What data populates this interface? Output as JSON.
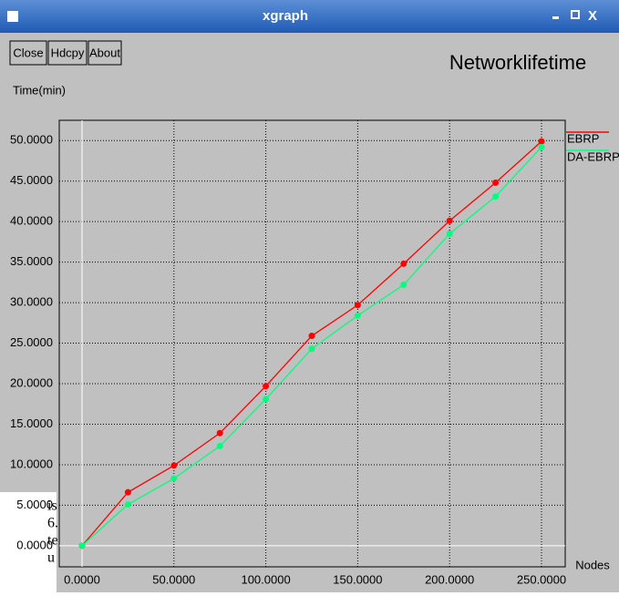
{
  "window": {
    "title": "xgraph",
    "buttons": [
      "Close",
      "Hdcpy",
      "About"
    ]
  },
  "background_fragments": [
    "is",
    "6.",
    "te",
    "u"
  ],
  "chart_data": {
    "type": "line",
    "title": "Networklifetime",
    "y_label": "Time(min)",
    "x_label": "Nodes",
    "x": [
      0,
      25,
      50,
      75,
      100,
      125,
      150,
      175,
      200,
      225,
      250
    ],
    "series": [
      {
        "name": "EBRP",
        "color": "#ff0000",
        "values": [
          0,
          6.6,
          9.9,
          13.9,
          19.7,
          25.9,
          29.7,
          34.8,
          40.1,
          44.8,
          49.9
        ]
      },
      {
        "name": "DA-EBRP",
        "color": "#00ff7f",
        "values": [
          0,
          5.1,
          8.3,
          12.3,
          18.1,
          24.3,
          28.4,
          32.2,
          38.5,
          43.1,
          49.2
        ]
      }
    ],
    "xlim": [
      -12.4,
      262.9
    ],
    "ylim": [
      -2.6,
      52.5
    ],
    "xticks": [
      {
        "value": 0,
        "label": "0.0000"
      },
      {
        "value": 50,
        "label": "50.0000"
      },
      {
        "value": 100,
        "label": "100.0000"
      },
      {
        "value": 150,
        "label": "150.0000"
      },
      {
        "value": 200,
        "label": "200.0000"
      },
      {
        "value": 250,
        "label": "250.0000"
      }
    ],
    "yticks": [
      {
        "value": 0,
        "label": "0.0000"
      },
      {
        "value": 5,
        "label": "5.0000"
      },
      {
        "value": 10,
        "label": "10.0000"
      },
      {
        "value": 15,
        "label": "15.0000"
      },
      {
        "value": 20,
        "label": "20.0000"
      },
      {
        "value": 25,
        "label": "25.0000"
      },
      {
        "value": 30,
        "label": "30.0000"
      },
      {
        "value": 35,
        "label": "35.0000"
      },
      {
        "value": 40,
        "label": "40.0000"
      },
      {
        "value": 45,
        "label": "45.0000"
      },
      {
        "value": 50,
        "label": "50.0000"
      }
    ],
    "grid": true
  }
}
